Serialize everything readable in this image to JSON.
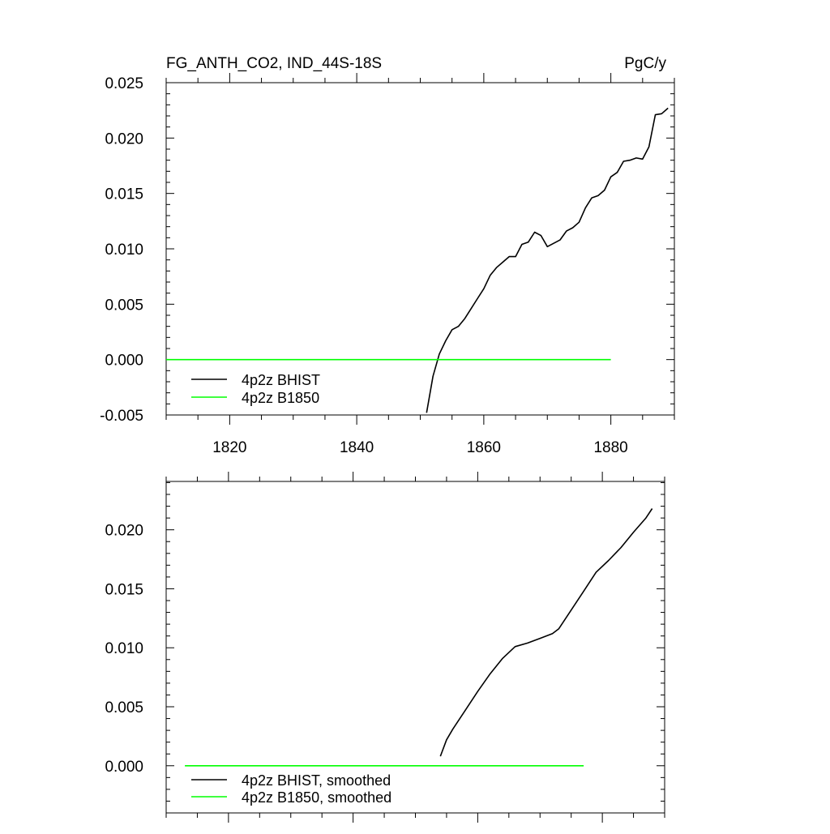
{
  "chart_data": [
    {
      "type": "line",
      "title_left": "FG_ANTH_CO2, IND_44S-18S",
      "title_right": "PgC/y",
      "xlim": [
        1810,
        1890
      ],
      "ylim": [
        -0.005,
        0.025
      ],
      "x_ticks": [
        1820,
        1840,
        1860,
        1880
      ],
      "x_tick_labels": [
        "1820",
        "1840",
        "1860",
        "1880"
      ],
      "y_ticks": [
        -0.005,
        0.0,
        0.005,
        0.01,
        0.015,
        0.02,
        0.025
      ],
      "y_tick_labels": [
        "-0.005",
        "0.000",
        "0.005",
        "0.010",
        "0.015",
        "0.020",
        "0.025"
      ],
      "legend_position": "bottom-left",
      "series": [
        {
          "name": "4p2z BHIST",
          "color": "#000000",
          "x": [
            1851,
            1852,
            1853,
            1854,
            1855,
            1856,
            1857,
            1858,
            1859,
            1860,
            1861,
            1862,
            1863,
            1864,
            1865,
            1866,
            1867,
            1868,
            1869,
            1870,
            1871,
            1872,
            1873,
            1874,
            1875,
            1876,
            1877,
            1878,
            1879,
            1880,
            1881,
            1882,
            1883,
            1884,
            1885,
            1886,
            1887,
            1888,
            1889
          ],
          "y": [
            -0.0048,
            -0.0015,
            0.0005,
            0.0017,
            0.0027,
            0.003,
            0.0037,
            0.0046,
            0.0055,
            0.0064,
            0.0076,
            0.0083,
            0.0088,
            0.0093,
            0.0093,
            0.0104,
            0.0106,
            0.0115,
            0.0112,
            0.0102,
            0.0105,
            0.0108,
            0.0116,
            0.0119,
            0.0124,
            0.0137,
            0.0146,
            0.0148,
            0.0153,
            0.0165,
            0.0169,
            0.0179,
            0.018,
            0.0182,
            0.0181,
            0.0192,
            0.0221,
            0.0222,
            0.0227
          ]
        },
        {
          "name": "4p2z B1850",
          "color": "#00ff00",
          "x": [
            1810,
            1880
          ],
          "y": [
            0.0,
            0.0
          ]
        }
      ]
    },
    {
      "type": "line",
      "xlim": [
        1810,
        1890
      ],
      "ylim": [
        -0.004,
        0.0241
      ],
      "x_ticks": [
        1820,
        1840,
        1860,
        1880
      ],
      "y_ticks": [
        0.0,
        0.005,
        0.01,
        0.015,
        0.02
      ],
      "y_tick_labels": [
        "0.000",
        "0.005",
        "0.010",
        "0.015",
        "0.020"
      ],
      "legend_position": "bottom-left",
      "series": [
        {
          "name": "4p2z BHIST, smoothed",
          "color": "#000000",
          "x": [
            1854,
            1855,
            1856,
            1858,
            1860,
            1862,
            1864,
            1866,
            1868,
            1870,
            1872,
            1873,
            1875,
            1877,
            1879,
            1881,
            1883,
            1885,
            1887,
            1888
          ],
          "y": [
            0.0008,
            0.0022,
            0.0031,
            0.0047,
            0.0063,
            0.0078,
            0.0091,
            0.0101,
            0.0104,
            0.0108,
            0.0112,
            0.0116,
            0.0132,
            0.0148,
            0.0164,
            0.0174,
            0.0185,
            0.0198,
            0.021,
            0.0218
          ]
        },
        {
          "name": "4p2z B1850, smoothed",
          "color": "#00ff00",
          "x": [
            1813,
            1877
          ],
          "y": [
            0.0,
            0.0
          ]
        }
      ]
    }
  ]
}
